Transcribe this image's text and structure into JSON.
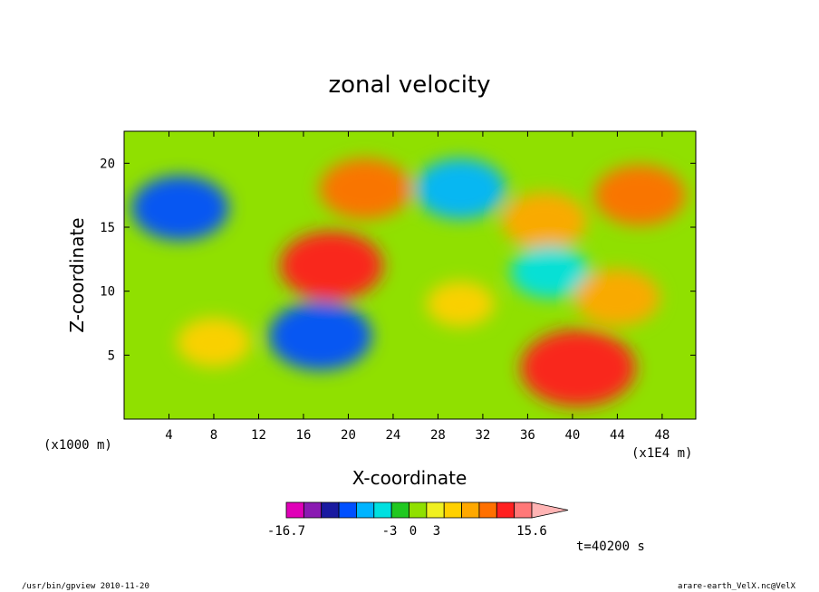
{
  "chart_data": {
    "type": "heatmap",
    "title": "zonal velocity",
    "xlabel": "X-coordinate",
    "ylabel": "Z-coordinate",
    "x_scale_label": "(x1E4 m)",
    "y_scale_label": "(x1000 m)",
    "xlim": [
      0,
      51
    ],
    "ylim": [
      0,
      22.5
    ],
    "x_ticks": [
      4,
      8,
      12,
      16,
      20,
      24,
      28,
      32,
      36,
      40,
      44,
      48
    ],
    "y_ticks": [
      5,
      10,
      15,
      20
    ],
    "grid": false,
    "colorbar": {
      "min": -16.7,
      "max": 15.6,
      "labels": [
        "-16.7",
        "-3",
        "0",
        "3",
        "15.6"
      ],
      "colors": [
        "#e000b8",
        "#8a1ab2",
        "#1a1aa0",
        "#0050ff",
        "#00b4ff",
        "#00e0e0",
        "#20c820",
        "#90e000",
        "#f0f020",
        "#ffd000",
        "#ffa800",
        "#ff7000",
        "#ff2020",
        "#ff7878",
        "#ffb4b4"
      ]
    },
    "features": [
      {
        "x": 5,
        "z": 16.5,
        "value": -9
      },
      {
        "x": 18.5,
        "z": 12,
        "value": 10
      },
      {
        "x": 17.5,
        "z": 6.5,
        "value": -10
      },
      {
        "x": 21.5,
        "z": 18,
        "value": 8
      },
      {
        "x": 30,
        "z": 18,
        "value": -8
      },
      {
        "x": 37.5,
        "z": 15.5,
        "value": 7
      },
      {
        "x": 46,
        "z": 17.5,
        "value": 8
      },
      {
        "x": 38,
        "z": 11.5,
        "value": -6
      },
      {
        "x": 44,
        "z": 9.5,
        "value": 7
      },
      {
        "x": 40.5,
        "z": 4,
        "value": 12
      },
      {
        "x": 8,
        "z": 6,
        "value": 5
      },
      {
        "x": 30,
        "z": 9,
        "value": 4
      }
    ]
  },
  "time_label": "t=40200 s",
  "footer_left": "/usr/bin/gpview   2010-11-20",
  "footer_right": "arare-earth_VelX.nc@VelX"
}
